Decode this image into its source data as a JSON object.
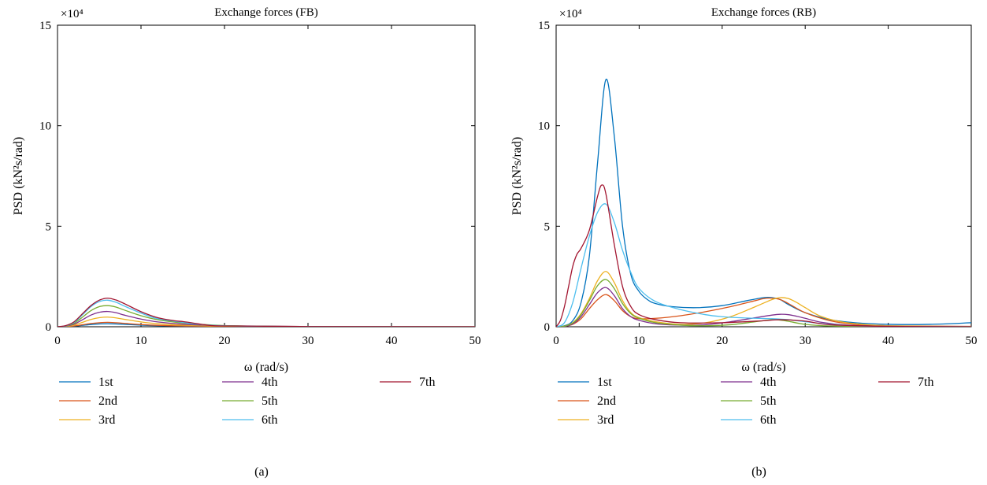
{
  "chart_data": [
    {
      "type": "line",
      "panel": "(a)",
      "title": "Exchange forces (FB)",
      "xlabel": "ω (rad/s)",
      "ylabel": "PSD (kN²s/rad)",
      "y_multiplier": "×10⁴",
      "xlim": [
        0,
        50
      ],
      "ylim": [
        0,
        15
      ],
      "xticks": [
        "0",
        "10",
        "20",
        "30",
        "40",
        "50"
      ],
      "yticks": [
        "0",
        "5",
        "10",
        "15"
      ],
      "grid": false,
      "legend_position": "below",
      "series": [
        {
          "name": "1st",
          "color": "#0072BD",
          "x": [
            0,
            1,
            2,
            3,
            4,
            5,
            6,
            7,
            8,
            10,
            12,
            15,
            20,
            30,
            50
          ],
          "y": [
            0,
            0.01,
            0.03,
            0.07,
            0.11,
            0.14,
            0.15,
            0.14,
            0.12,
            0.08,
            0.05,
            0.03,
            0.01,
            0,
            0
          ]
        },
        {
          "name": "2nd",
          "color": "#D95319",
          "x": [
            0,
            1,
            2,
            3,
            4,
            5,
            6,
            7,
            8,
            10,
            12,
            15,
            20,
            30,
            50
          ],
          "y": [
            0,
            0.01,
            0.04,
            0.1,
            0.16,
            0.2,
            0.22,
            0.2,
            0.17,
            0.11,
            0.07,
            0.04,
            0.02,
            0.01,
            0
          ]
        },
        {
          "name": "3rd",
          "color": "#EDB120",
          "x": [
            0,
            1,
            2,
            3,
            4,
            5,
            6,
            7,
            8,
            10,
            12,
            15,
            20,
            30,
            50
          ],
          "y": [
            0,
            0.02,
            0.08,
            0.22,
            0.36,
            0.45,
            0.48,
            0.44,
            0.37,
            0.24,
            0.15,
            0.08,
            0.03,
            0.01,
            0
          ]
        },
        {
          "name": "4th",
          "color": "#7E2F8E",
          "x": [
            0,
            1,
            2,
            3,
            4,
            5,
            6,
            7,
            8,
            10,
            12,
            15,
            20,
            30,
            50
          ],
          "y": [
            0,
            0.03,
            0.13,
            0.35,
            0.58,
            0.72,
            0.76,
            0.7,
            0.58,
            0.38,
            0.24,
            0.13,
            0.05,
            0.01,
            0
          ]
        },
        {
          "name": "5th",
          "color": "#77AC30",
          "x": [
            0,
            1,
            2,
            3,
            4,
            5,
            6,
            7,
            8,
            10,
            12,
            15,
            20,
            30,
            50
          ],
          "y": [
            0,
            0.04,
            0.18,
            0.48,
            0.8,
            1.0,
            1.05,
            0.98,
            0.83,
            0.55,
            0.35,
            0.19,
            0.06,
            0.01,
            0
          ]
        },
        {
          "name": "6th",
          "color": "#4DBEEE",
          "x": [
            0,
            1,
            2,
            3,
            4,
            5,
            6,
            7,
            8,
            10,
            12,
            15,
            16,
            20,
            30,
            50
          ],
          "y": [
            0,
            0.05,
            0.22,
            0.6,
            1.0,
            1.25,
            1.32,
            1.22,
            1.03,
            0.68,
            0.4,
            0.22,
            0.16,
            0.05,
            0.01,
            0
          ]
        },
        {
          "name": "7th",
          "color": "#A2142F",
          "x": [
            0,
            1,
            2,
            3,
            4,
            5,
            6,
            7,
            8,
            10,
            12,
            14,
            15,
            16,
            18,
            20,
            30,
            50
          ],
          "y": [
            0,
            0.06,
            0.25,
            0.65,
            1.05,
            1.32,
            1.42,
            1.33,
            1.15,
            0.75,
            0.45,
            0.3,
            0.26,
            0.2,
            0.08,
            0.04,
            0.01,
            0
          ]
        }
      ]
    },
    {
      "type": "line",
      "panel": "(b)",
      "title": "Exchange forces (RB)",
      "xlabel": "ω (rad/s)",
      "ylabel": "PSD (kN²s/rad)",
      "y_multiplier": "×10⁴",
      "xlim": [
        0,
        50
      ],
      "ylim": [
        0,
        15
      ],
      "xticks": [
        "0",
        "10",
        "20",
        "30",
        "40",
        "50"
      ],
      "yticks": [
        "0",
        "5",
        "10",
        "15"
      ],
      "grid": false,
      "legend_position": "below",
      "series": [
        {
          "name": "1st",
          "color": "#0072BD",
          "x": [
            0,
            1,
            2,
            3,
            4,
            5,
            6,
            7,
            8,
            9,
            10,
            11,
            12,
            14,
            17,
            20,
            23,
            25,
            26,
            27,
            28,
            30,
            33,
            36,
            40,
            45,
            50
          ],
          "y": [
            0,
            0.05,
            0.3,
            1.2,
            3.5,
            8.2,
            12.3,
            9.5,
            5.0,
            2.6,
            1.75,
            1.35,
            1.15,
            1.0,
            0.95,
            1.05,
            1.3,
            1.45,
            1.45,
            1.35,
            1.1,
            0.7,
            0.35,
            0.2,
            0.12,
            0.12,
            0.2
          ]
        },
        {
          "name": "2nd",
          "color": "#D95319",
          "x": [
            0,
            1,
            2,
            3,
            4,
            5,
            6,
            7,
            8,
            9,
            10,
            12,
            15,
            18,
            21,
            24,
            25,
            26,
            27,
            28,
            30,
            33,
            36,
            40,
            50
          ],
          "y": [
            0,
            0.02,
            0.12,
            0.4,
            0.9,
            1.35,
            1.6,
            1.3,
            0.8,
            0.5,
            0.4,
            0.42,
            0.55,
            0.75,
            1.0,
            1.3,
            1.4,
            1.42,
            1.35,
            1.15,
            0.7,
            0.3,
            0.12,
            0.05,
            0.02
          ]
        },
        {
          "name": "3rd",
          "color": "#EDB120",
          "x": [
            0,
            1,
            2,
            3,
            4,
            5,
            6,
            7,
            8,
            9,
            10,
            12,
            15,
            18,
            21,
            24,
            26,
            27,
            28,
            29,
            30,
            32,
            35,
            40,
            50
          ],
          "y": [
            0,
            0.03,
            0.2,
            0.65,
            1.4,
            2.3,
            2.75,
            2.2,
            1.3,
            0.7,
            0.45,
            0.25,
            0.12,
            0.2,
            0.5,
            1.0,
            1.35,
            1.45,
            1.4,
            1.2,
            0.95,
            0.5,
            0.2,
            0.05,
            0.01
          ]
        },
        {
          "name": "4th",
          "color": "#7E2F8E",
          "x": [
            0,
            1,
            2,
            3,
            4,
            5,
            6,
            7,
            8,
            9,
            10,
            12,
            15,
            18,
            21,
            24,
            26,
            27,
            28,
            29,
            30,
            32,
            35,
            40,
            50
          ],
          "y": [
            0,
            0.02,
            0.14,
            0.5,
            1.1,
            1.7,
            1.95,
            1.55,
            0.9,
            0.5,
            0.32,
            0.15,
            0.08,
            0.1,
            0.25,
            0.45,
            0.58,
            0.62,
            0.6,
            0.52,
            0.42,
            0.22,
            0.08,
            0.02,
            0
          ]
        },
        {
          "name": "5th",
          "color": "#77AC30",
          "x": [
            0,
            1,
            2,
            3,
            4,
            5,
            6,
            7,
            8,
            9,
            10,
            12,
            15,
            18,
            21,
            24,
            26,
            27,
            28,
            30,
            33,
            40,
            50
          ],
          "y": [
            0,
            0.03,
            0.18,
            0.6,
            1.3,
            2.05,
            2.35,
            1.9,
            1.15,
            0.65,
            0.42,
            0.2,
            0.08,
            0.05,
            0.1,
            0.25,
            0.35,
            0.33,
            0.27,
            0.12,
            0.04,
            0.01,
            0
          ]
        },
        {
          "name": "6th",
          "color": "#4DBEEE",
          "x": [
            0,
            1,
            2,
            3,
            4,
            5,
            6,
            7,
            8,
            9,
            10,
            12,
            15,
            18,
            20,
            22,
            24,
            26,
            28,
            30,
            33,
            36,
            40,
            50
          ],
          "y": [
            0,
            0.2,
            1.2,
            2.9,
            4.5,
            5.7,
            6.1,
            5.2,
            3.8,
            2.7,
            1.9,
            1.25,
            0.85,
            0.6,
            0.5,
            0.45,
            0.42,
            0.4,
            0.35,
            0.25,
            0.12,
            0.05,
            0.02,
            0
          ]
        },
        {
          "name": "7th",
          "color": "#A2142F",
          "x": [
            0,
            0.5,
            1,
            1.5,
            2,
            2.5,
            3,
            4,
            5,
            5.5,
            6,
            7,
            8,
            9,
            10,
            12,
            15,
            20,
            25,
            27,
            30,
            33,
            40,
            50
          ],
          "y": [
            0,
            0.3,
            1.0,
            2.0,
            3.0,
            3.6,
            3.9,
            4.8,
            6.5,
            7.05,
            6.6,
            4.1,
            2.0,
            1.0,
            0.6,
            0.35,
            0.2,
            0.2,
            0.3,
            0.35,
            0.28,
            0.1,
            0.02,
            0
          ]
        }
      ]
    }
  ]
}
